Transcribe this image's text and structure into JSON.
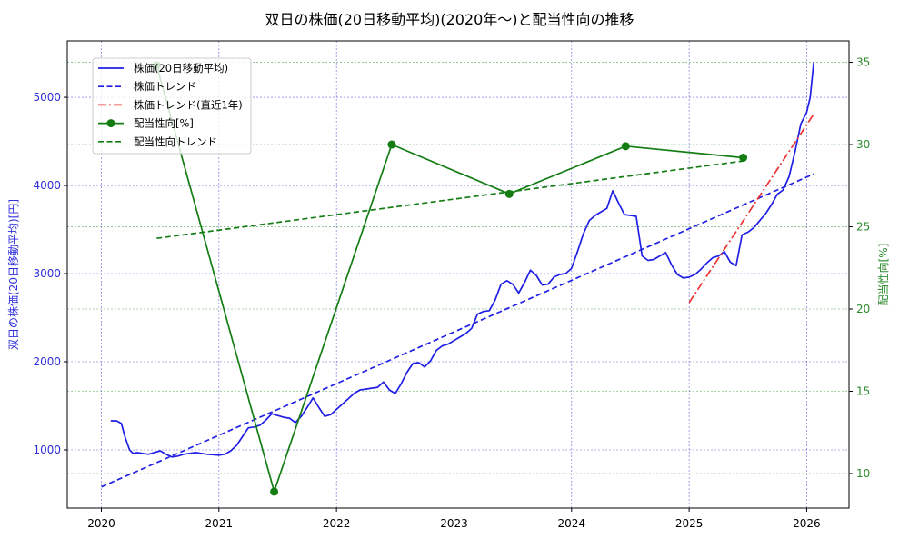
{
  "chart_data": {
    "type": "line",
    "title": "双日の株価(20日移動平均)(2020年〜)と配当性向の推移",
    "xlabel": "",
    "ylabel_left": "双日の株価(20日移動平均)[円]",
    "ylabel_right": "配当性向[%]",
    "xlim": [
      2019.71,
      2026.36
    ],
    "ylim_left": [
      340,
      5640
    ],
    "ylim_right": [
      7.9,
      36.3
    ],
    "x_ticks": [
      "2020",
      "2021",
      "2022",
      "2023",
      "2024",
      "2025",
      "2026"
    ],
    "y_ticks_left": [
      "1000",
      "2000",
      "3000",
      "4000",
      "5000"
    ],
    "y_ticks_right": [
      "10",
      "15",
      "20",
      "25",
      "30",
      "35"
    ],
    "grid": true,
    "legend_position": "upper left",
    "colors": {
      "price": "#1f1fe6",
      "price_trend": "#1f1fe6",
      "recent_trend": "#ee3333",
      "payout": "#137d13",
      "payout_trend": "#137d13",
      "left_axis": "#2f2fdd",
      "right_axis": "#2e8b2e"
    },
    "legend": [
      {
        "label": "株価(20日移動平均)",
        "style": "solid",
        "color": "#1f1fe6"
      },
      {
        "label": "株価トレンド",
        "style": "dashed",
        "color": "#1f1fe6"
      },
      {
        "label": "株価トレンド(直近1年)",
        "style": "dashdot",
        "color": "#ee3333"
      },
      {
        "label": "配当性向[%]",
        "style": "solid-marker",
        "color": "#137d13"
      },
      {
        "label": "配当性向トレンド",
        "style": "dashed",
        "color": "#137d13"
      }
    ],
    "series": [
      {
        "name": "株価(20日移動平均)",
        "axis": "left",
        "x": [
          2020.08,
          2020.13,
          2020.17,
          2020.2,
          2020.24,
          2020.27,
          2020.3,
          2020.35,
          2020.4,
          2020.45,
          2020.5,
          2020.55,
          2020.6,
          2020.65,
          2020.7,
          2020.8,
          2020.9,
          2021.0,
          2021.05,
          2021.1,
          2021.15,
          2021.2,
          2021.25,
          2021.3,
          2021.35,
          2021.4,
          2021.45,
          2021.5,
          2021.55,
          2021.6,
          2021.65,
          2021.7,
          2021.75,
          2021.8,
          2021.85,
          2021.9,
          2021.95,
          2022.0,
          2022.05,
          2022.1,
          2022.15,
          2022.2,
          2022.25,
          2022.3,
          2022.35,
          2022.4,
          2022.45,
          2022.5,
          2022.55,
          2022.6,
          2022.65,
          2022.7,
          2022.75,
          2022.8,
          2022.85,
          2022.9,
          2022.95,
          2023.0,
          2023.05,
          2023.1,
          2023.15,
          2023.2,
          2023.25,
          2023.3,
          2023.35,
          2023.4,
          2023.45,
          2023.5,
          2023.55,
          2023.6,
          2023.65,
          2023.7,
          2023.75,
          2023.8,
          2023.85,
          2023.9,
          2023.95,
          2024.0,
          2024.05,
          2024.1,
          2024.15,
          2024.2,
          2024.25,
          2024.3,
          2024.35,
          2024.4,
          2024.45,
          2024.5,
          2024.55,
          2024.6,
          2024.65,
          2024.7,
          2024.75,
          2024.8,
          2024.85,
          2024.9,
          2024.95,
          2025.0,
          2025.05,
          2025.1,
          2025.15,
          2025.2,
          2025.25,
          2025.3,
          2025.35,
          2025.4,
          2025.45,
          2025.5,
          2025.55,
          2025.6,
          2025.65,
          2025.7,
          2025.75,
          2025.8,
          2025.85,
          2025.9,
          2025.95,
          2026.0,
          2026.03,
          2026.06
        ],
        "values": [
          1330,
          1330,
          1300,
          1150,
          1000,
          960,
          970,
          960,
          950,
          970,
          990,
          950,
          920,
          930,
          950,
          970,
          950,
          940,
          950,
          990,
          1050,
          1150,
          1250,
          1260,
          1280,
          1340,
          1410,
          1390,
          1370,
          1360,
          1310,
          1380,
          1480,
          1590,
          1480,
          1380,
          1400,
          1460,
          1520,
          1580,
          1640,
          1680,
          1690,
          1700,
          1710,
          1770,
          1680,
          1640,
          1750,
          1880,
          1980,
          1990,
          1940,
          2010,
          2130,
          2180,
          2200,
          2240,
          2280,
          2320,
          2380,
          2540,
          2570,
          2580,
          2700,
          2880,
          2920,
          2880,
          2780,
          2900,
          3040,
          2980,
          2870,
          2880,
          2960,
          2990,
          3000,
          3060,
          3250,
          3450,
          3600,
          3660,
          3700,
          3740,
          3940,
          3800,
          3670,
          3660,
          3650,
          3200,
          3150,
          3160,
          3200,
          3240,
          3100,
          2990,
          2950,
          2960,
          2990,
          3050,
          3120,
          3180,
          3200,
          3250,
          3130,
          3090,
          3440,
          3470,
          3520,
          3600,
          3680,
          3780,
          3900,
          3950,
          4100,
          4380,
          4700,
          4830,
          5000,
          5400
        ]
      },
      {
        "name": "株価トレンド",
        "axis": "left",
        "x": [
          2020.0,
          2026.06
        ],
        "values": [
          580,
          4130
        ]
      },
      {
        "name": "株価トレンド(直近1年)",
        "axis": "left",
        "x": [
          2025.0,
          2026.06
        ],
        "values": [
          2670,
          4810
        ]
      },
      {
        "name": "配当性向[%]",
        "axis": "right",
        "x": [
          2020.47,
          2021.47,
          2022.47,
          2023.47,
          2024.46,
          2025.46
        ],
        "values": [
          34.8,
          8.9,
          30.0,
          27.0,
          29.9,
          29.2
        ]
      },
      {
        "name": "配当性向トレンド",
        "axis": "right",
        "x": [
          2020.47,
          2025.46
        ],
        "values": [
          24.3,
          29.0
        ]
      }
    ]
  },
  "title": "双日の株価(20日移動平均)(2020年〜)と配当性向の推移"
}
